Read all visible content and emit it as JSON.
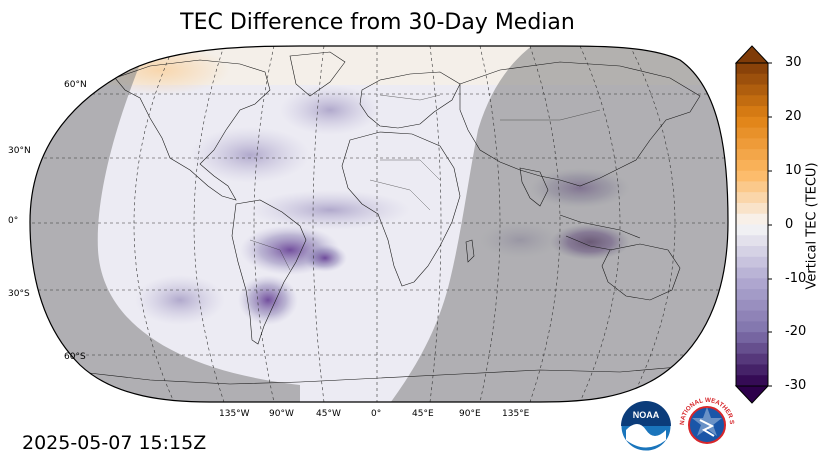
{
  "title": "TEC Difference from 30-Day Median",
  "timestamp": "2025-05-07 15:15Z",
  "map": {
    "projection": "Robinson",
    "night_shading": true,
    "lat_labels": [
      "60°N",
      "30°N",
      "0°",
      "30°S",
      "60°S"
    ],
    "lon_labels": [
      "135°W",
      "90°W",
      "45°W",
      "0°",
      "45°E",
      "90°E",
      "135°E"
    ],
    "gridlines": "dashed",
    "notable_anomalies": [
      {
        "region": "Southern Indonesia",
        "value_tecu": -28
      },
      {
        "region": "Central South America",
        "value_tecu": -20
      },
      {
        "region": "Southern South America",
        "value_tecu": -22
      },
      {
        "region": "Southeast Asia",
        "value_tecu": -15
      }
    ]
  },
  "colorbar": {
    "label": "Vertical TEC (TECU)",
    "ticks": [
      "30",
      "20",
      "10",
      "0",
      "-10",
      "-20",
      "-30"
    ],
    "min": -30,
    "max": 30,
    "colormap": "PuOr_r",
    "colors": {
      "max": "#7f3b08",
      "high": "#e08214",
      "mid_high": "#fdb863",
      "zero": "#f7f7f7",
      "mid_low": "#b2abd2",
      "low": "#8073ac",
      "min": "#2d004b"
    },
    "extend": "both"
  },
  "logos": {
    "noaa_text": "NOAA",
    "nws_text": "NATIONAL WEATHER SERVICE"
  }
}
